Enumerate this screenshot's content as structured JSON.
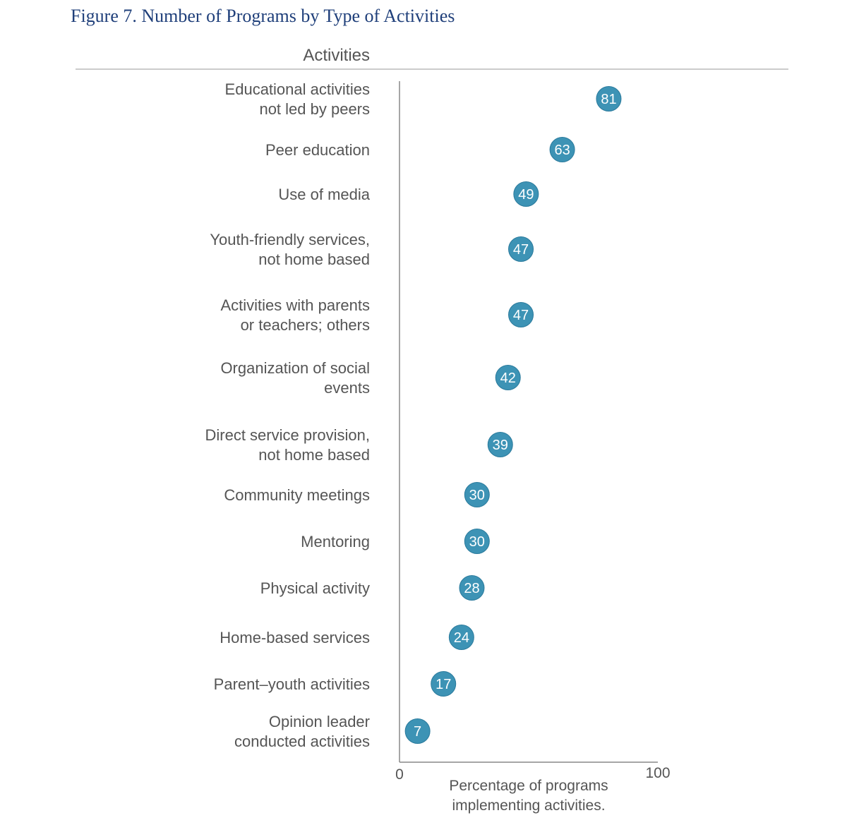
{
  "title": "Figure 7.  Number of Programs by Type of Activities",
  "colors": {
    "title": "#1f3f7a",
    "dot": "#3d93b5",
    "dot_stroke": "#2a7a9c",
    "axis": "#888888",
    "text": "#555555"
  },
  "chart_data": {
    "type": "scatter",
    "title": "Figure 7.  Number of Programs by Type of Activities",
    "category_header": "Activities",
    "xlabel": [
      "Percentage of programs",
      "implementing activities."
    ],
    "xlim": [
      0,
      100
    ],
    "x_ticks": [
      "0",
      "100"
    ],
    "grid": false,
    "categories": [
      [
        "Educational activities",
        "not led by peers"
      ],
      [
        "Peer education"
      ],
      [
        "Use of media"
      ],
      [
        "Youth-friendly services,",
        "not home based"
      ],
      [
        "Activities with parents",
        "or teachers; others"
      ],
      [
        "Organization of social",
        "events"
      ],
      [
        "Direct service provision,",
        "not home based"
      ],
      [
        "Community meetings"
      ],
      [
        "Mentoring"
      ],
      [
        "Physical activity"
      ],
      [
        "Home-based services"
      ],
      [
        "Parent–youth activities"
      ],
      [
        "Opinion leader",
        "conducted activities"
      ]
    ],
    "values": [
      81,
      63,
      49,
      47,
      47,
      42,
      39,
      30,
      30,
      28,
      24,
      17,
      7
    ]
  }
}
